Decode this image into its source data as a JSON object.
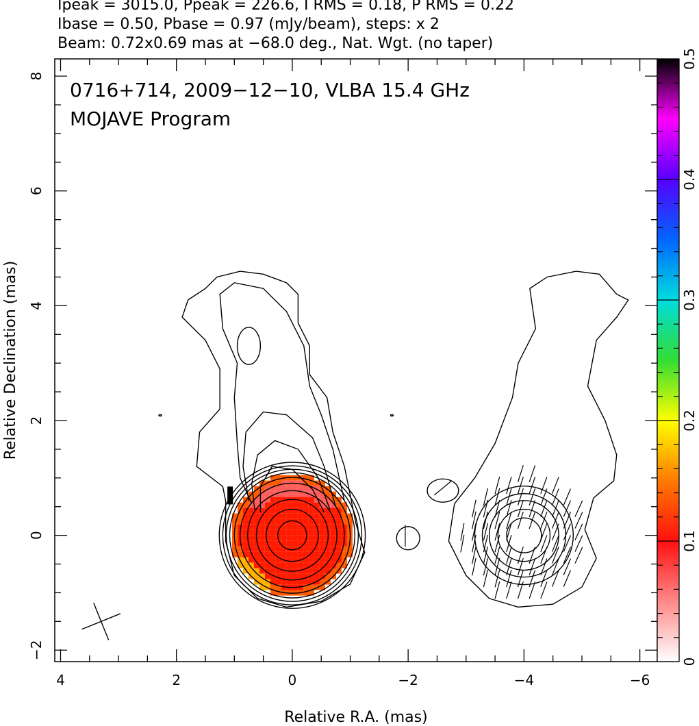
{
  "header": {
    "line1": "Ipeak = 3015.0, Ppeak = 226.6, I RMS = 0.18, P RMS = 0.22",
    "line2": "Ibase = 0.50, Pbase = 0.97 (mJy/beam), steps: x 2",
    "line3": "Beam: 0.72x0.69 mas at −68.0 deg., Nat. Wgt. (no taper)"
  },
  "plot_title": {
    "line1": "0716+714, 2009−12−10, VLBA 15.4 GHz",
    "line2": "MOJAVE Program"
  },
  "chart_data": {
    "type": "contour",
    "xlabel": "Relative R.A. (mas)",
    "ylabel": "Relative Declination (mas)",
    "xlim": [
      4.1,
      -6.3
    ],
    "ylim": [
      -2.2,
      8.3
    ],
    "xticks": [
      4,
      2,
      0,
      -2,
      -4,
      -6
    ],
    "xtick_labels": [
      "4",
      "2",
      "0",
      "−2",
      "−4",
      "−6"
    ],
    "yticks": [
      -2,
      0,
      2,
      4,
      6,
      8
    ],
    "ytick_labels": [
      "−2",
      "0",
      "2",
      "4",
      "6",
      "8"
    ],
    "colorbar": {
      "range": [
        0,
        0.5
      ],
      "ticks": [
        0,
        0.1,
        0.2,
        0.3,
        0.4,
        0.5
      ],
      "tick_labels": [
        "0",
        "0.1",
        "0.2",
        "0.3",
        "0.4",
        "0.5"
      ]
    },
    "beam": {
      "major_mas": 0.72,
      "minor_mas": 0.69,
      "pa_deg": -68.0,
      "center": [
        3.3,
        -1.5
      ]
    },
    "left_panel": {
      "core": {
        "x": 0,
        "y": 0
      },
      "contour_radii": [
        0.25,
        0.45,
        0.62,
        0.77,
        0.9,
        1.0,
        1.08,
        1.14,
        1.2,
        1.26
      ],
      "jet_extent_y": 4.6,
      "knot": {
        "x": 0.75,
        "y": 3.3
      }
    },
    "right_panel": {
      "core": {
        "x": -4,
        "y": 0
      },
      "contour_radii": [
        0.3,
        0.45,
        0.6,
        0.72,
        0.85
      ],
      "jet_extent_y": 4.6
    }
  }
}
